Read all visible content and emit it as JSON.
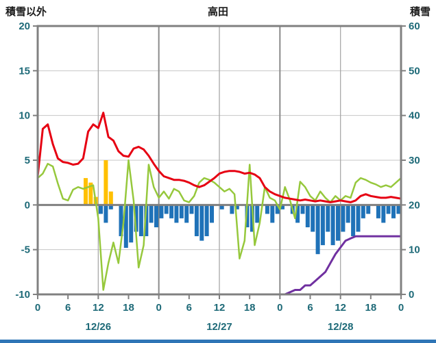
{
  "header": {
    "left_axis_title": "積雪以外",
    "station_title": "高田",
    "right_axis_title": "積雪"
  },
  "chart_data": {
    "type": "line",
    "title": "高田",
    "left_axis": {
      "label": "積雪以外",
      "min": -10,
      "max": 20,
      "ticks": [
        20,
        15,
        10,
        5,
        0,
        -5,
        -10
      ]
    },
    "right_axis": {
      "label": "積雪",
      "min": 0,
      "max": 60,
      "ticks": [
        60,
        50,
        40,
        30,
        20,
        10,
        0
      ]
    },
    "x_axis": {
      "hours_total": 72,
      "tick_interval": 6,
      "tick_labels": [
        "0",
        "6",
        "12",
        "18",
        "0",
        "6",
        "12",
        "18",
        "0",
        "6",
        "12",
        "18",
        "0"
      ],
      "day_labels": [
        "12/26",
        "12/27",
        "12/28"
      ],
      "grid_hours_major": [
        24,
        48
      ],
      "grid_hours_minor": [
        12,
        36,
        60
      ]
    },
    "series": [
      {
        "name": "sunshine-bars",
        "type": "bar",
        "axis": "left",
        "color": "#ffc000",
        "values": [
          0,
          0,
          0,
          0,
          0,
          0,
          0,
          0,
          0,
          3.0,
          2.5,
          0.9,
          0,
          5.0,
          1.5,
          0,
          0,
          0,
          0,
          0,
          0,
          0,
          0,
          0,
          0,
          0,
          0,
          0,
          0,
          0,
          0,
          0,
          0,
          0,
          0,
          0,
          0,
          0,
          0,
          0,
          0,
          0,
          0,
          0,
          0,
          0,
          0,
          0,
          0,
          0,
          0,
          0,
          0,
          0,
          0,
          0,
          0,
          0,
          0,
          0,
          0,
          0,
          0,
          0,
          0,
          0,
          0,
          0,
          0,
          0,
          0,
          0
        ]
      },
      {
        "name": "precipitation-bars",
        "type": "bar",
        "axis": "left",
        "color": "#1f72b8",
        "values": [
          0,
          0,
          0,
          0,
          0,
          0,
          0,
          0,
          0,
          0,
          0,
          0,
          -1.0,
          -2.0,
          -0.5,
          0,
          -3.5,
          -4.8,
          -4.2,
          -3.0,
          -3.5,
          -3.5,
          -2.0,
          -2.5,
          -1.5,
          -1.0,
          -1.5,
          -2.0,
          -1.5,
          -2.0,
          -1.0,
          -3.5,
          -4.0,
          -3.5,
          -2.0,
          0,
          -0.5,
          0,
          -1.0,
          -0.5,
          0,
          -2.5,
          -3.0,
          -2.0,
          0,
          -1.0,
          -2.0,
          -1.0,
          -0.5,
          0,
          -1.0,
          -2.0,
          -1.0,
          -2.5,
          -3.0,
          -5.5,
          -4.5,
          -3.0,
          -4.5,
          -4.0,
          -3.0,
          -2.0,
          -3.5,
          -3.0,
          -1.5,
          -1.0,
          0,
          -1.5,
          -2.0,
          -1.0,
          -1.5,
          -1.0
        ]
      },
      {
        "name": "green-line",
        "type": "line",
        "axis": "left",
        "color": "#96c83c",
        "width": 2.5,
        "values": [
          3.0,
          3.5,
          4.6,
          4.3,
          2.4,
          0.7,
          0.5,
          1.7,
          2.0,
          1.8,
          2.0,
          2.2,
          -1.5,
          -9.5,
          -6.5,
          -4.2,
          -6.5,
          -2.0,
          5.0,
          0.5,
          -7.0,
          -4.5,
          4.5,
          2.0,
          0.8,
          1.5,
          0.7,
          1.8,
          1.5,
          0.5,
          0.3,
          1.0,
          2.5,
          3.0,
          2.8,
          2.5,
          2.0,
          1.5,
          1.8,
          1.2,
          -6.0,
          -4.0,
          4.5,
          -4.5,
          -2.0,
          2.0,
          0.8,
          0.5,
          -0.5,
          2.0,
          0.5,
          -1.5,
          2.6,
          2.0,
          1.0,
          0.5,
          1.5,
          0.8,
          0.3,
          1.0,
          0.5,
          1.0,
          0.8,
          2.5,
          3.0,
          2.8,
          2.5,
          2.3,
          2.0,
          2.2,
          2.0,
          2.5,
          3.0
        ]
      },
      {
        "name": "temperature-line",
        "type": "line",
        "axis": "left",
        "color": "#e60012",
        "width": 3,
        "values": [
          3.2,
          8.5,
          9.0,
          6.8,
          5.2,
          4.8,
          4.7,
          4.5,
          4.6,
          5.2,
          8.2,
          9.0,
          8.6,
          10.3,
          7.6,
          7.2,
          6.0,
          5.5,
          5.4,
          6.3,
          6.5,
          6.2,
          5.5,
          4.6,
          3.8,
          3.2,
          3.0,
          2.8,
          2.8,
          2.7,
          2.5,
          2.2,
          2.0,
          2.2,
          2.6,
          3.0,
          3.5,
          3.7,
          3.8,
          3.8,
          3.7,
          3.5,
          3.6,
          3.4,
          3.0,
          2.0,
          1.5,
          1.2,
          1.0,
          0.8,
          0.7,
          0.6,
          0.5,
          0.6,
          0.5,
          0.4,
          0.5,
          0.4,
          0.3,
          0.4,
          0.5,
          0.4,
          0.3,
          0.5,
          1.0,
          1.2,
          1.0,
          0.9,
          0.8,
          0.8,
          0.9,
          0.8,
          0.7
        ]
      },
      {
        "name": "snow-depth-line",
        "type": "line",
        "axis": "right",
        "color": "#7030a0",
        "width": 3,
        "values": [
          0,
          0,
          0,
          0,
          0,
          0,
          0,
          0,
          0,
          0,
          0,
          0,
          0,
          0,
          0,
          0,
          0,
          0,
          0,
          0,
          0,
          0,
          0,
          0,
          0,
          0,
          0,
          0,
          0,
          0,
          0,
          0,
          0,
          0,
          0,
          0,
          0,
          0,
          0,
          0,
          0,
          0,
          0,
          0,
          0,
          0,
          0,
          0,
          0,
          0,
          0.5,
          1,
          1,
          2,
          2,
          3,
          4,
          5,
          7,
          9,
          10.5,
          12,
          12.5,
          13,
          13,
          13,
          13,
          13,
          13,
          13,
          13,
          13,
          13
        ]
      }
    ],
    "colors": {
      "axis_text": "#1e6a78",
      "frame": "#808080",
      "zero_line": "#808080",
      "grid_h": "#c6c6c6",
      "grid_v_major": "#8a8a8a",
      "grid_v_minor": "#a8a8a8",
      "background": "#ffffff",
      "bottom_strip": "#2e75b6"
    }
  }
}
